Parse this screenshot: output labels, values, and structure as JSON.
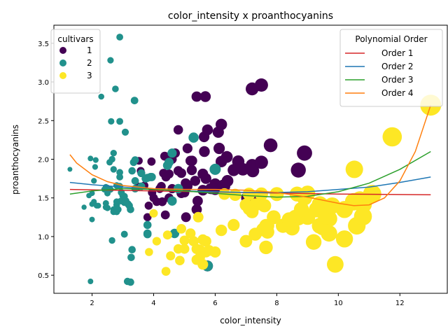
{
  "chart_data": {
    "type": "scatter",
    "title": "color_intensity x proanthocyanins",
    "xlabel": "color_intensity",
    "ylabel": "proanthocyanins",
    "xlim": [
      0.76,
      13.54
    ],
    "ylim": [
      0.266,
      3.734
    ],
    "xticks": [
      2,
      4,
      6,
      8,
      10,
      12
    ],
    "yticks": [
      0.5,
      1.0,
      1.5,
      2.0,
      2.5,
      3.0,
      3.5
    ],
    "ytick_labels": [
      "0.5",
      "1.0",
      "1.5",
      "2.0",
      "2.5",
      "3.0",
      "3.5"
    ],
    "grid": false,
    "legend_cultivars": {
      "title": "cultivars",
      "placement": "top-left",
      "entries": [
        {
          "label": "1",
          "color": "#440154"
        },
        {
          "label": "2",
          "color": "#21918c"
        },
        {
          "label": "3",
          "color": "#fde725"
        }
      ]
    },
    "legend_fits": {
      "title": "Polynomial Order",
      "placement": "top-right",
      "entries": [
        {
          "label": "Order 1",
          "color": "#d62728"
        },
        {
          "label": "Order 2",
          "color": "#1f77b4"
        },
        {
          "label": "Order 3",
          "color": "#2ca02c"
        },
        {
          "label": "Order 4",
          "color": "#ff7f0e"
        }
      ]
    },
    "fits": [
      {
        "name": "Order 1",
        "color": "#d62728",
        "x": [
          1.28,
          4,
          7,
          10,
          13.0
        ],
        "y": [
          1.61,
          1.59,
          1.57,
          1.55,
          1.54
        ]
      },
      {
        "name": "Order 2",
        "color": "#1f77b4",
        "x": [
          1.28,
          2,
          3,
          4,
          5,
          6,
          7,
          8,
          9,
          10,
          11,
          12,
          13.0
        ],
        "y": [
          1.7,
          1.67,
          1.64,
          1.61,
          1.59,
          1.58,
          1.57,
          1.57,
          1.58,
          1.61,
          1.64,
          1.7,
          1.77
        ]
      },
      {
        "name": "Order 3",
        "color": "#2ca02c",
        "x": [
          1.28,
          2,
          3,
          4,
          5,
          6,
          7,
          8,
          9,
          10,
          11,
          12,
          13.0
        ],
        "y": [
          1.55,
          1.59,
          1.62,
          1.61,
          1.59,
          1.56,
          1.53,
          1.51,
          1.52,
          1.58,
          1.69,
          1.87,
          2.1
        ]
      },
      {
        "name": "Order 4",
        "color": "#ff7f0e",
        "x": [
          1.28,
          1.5,
          2,
          2.5,
          3,
          4,
          5,
          6,
          7,
          8,
          9,
          10,
          10.5,
          11,
          11.5,
          12,
          12.5,
          13.0
        ],
        "y": [
          2.06,
          1.95,
          1.8,
          1.71,
          1.66,
          1.62,
          1.61,
          1.61,
          1.6,
          1.57,
          1.51,
          1.43,
          1.4,
          1.41,
          1.5,
          1.72,
          2.1,
          2.7
        ]
      }
    ],
    "series": [
      {
        "name": "1",
        "color": "#440154",
        "points": [
          [
            5.64,
            2.29
          ],
          [
            4.38,
            1.28
          ],
          [
            5.68,
            2.81
          ],
          [
            7.8,
            2.18
          ],
          [
            4.32,
            1.82
          ],
          [
            6.75,
            1.97
          ],
          [
            5.25,
            1.98
          ],
          [
            5.05,
            1.25
          ],
          [
            5.2,
            1.98
          ],
          [
            7.22,
            1.85
          ],
          [
            5.75,
            2.38
          ],
          [
            5.0,
            1.57
          ],
          [
            5.6,
            1.81
          ],
          [
            7.5,
            2.96
          ],
          [
            7.3,
            1.46
          ],
          [
            6.2,
            1.97
          ],
          [
            6.4,
            1.72
          ],
          [
            6.6,
            1.86
          ],
          [
            8.7,
            1.86
          ],
          [
            5.1,
            1.66
          ],
          [
            5.65,
            2.1
          ],
          [
            4.5,
            1.5
          ],
          [
            3.8,
            1.25
          ],
          [
            3.93,
            1.97
          ],
          [
            3.52,
            1.98
          ],
          [
            3.58,
            1.85
          ],
          [
            4.8,
            2.38
          ],
          [
            3.95,
            1.57
          ],
          [
            4.5,
            1.81
          ],
          [
            4.7,
            2.08
          ],
          [
            5.7,
            1.75
          ],
          [
            6.9,
            1.87
          ],
          [
            3.84,
            1.4
          ],
          [
            5.4,
            1.35
          ],
          [
            4.2,
            1.62
          ],
          [
            5.1,
            2.14
          ],
          [
            4.6,
            1.62
          ],
          [
            4.25,
            1.65
          ],
          [
            3.7,
            1.66
          ],
          [
            5.1,
            1.65
          ],
          [
            6.13,
            2.14
          ],
          [
            7.2,
            2.91
          ],
          [
            4.28,
            1.45
          ],
          [
            5.43,
            1.46
          ],
          [
            4.36,
            2.04
          ],
          [
            5.04,
            1.69
          ],
          [
            5.24,
            1.86
          ],
          [
            4.9,
            1.56
          ],
          [
            6.1,
            2.35
          ],
          [
            6.2,
            2.45
          ],
          [
            8.9,
            2.08
          ],
          [
            7.2,
            1.92
          ],
          [
            5.6,
            1.6
          ],
          [
            7.05,
            1.5
          ],
          [
            6.3,
            1.65
          ],
          [
            5.85,
            1.62
          ],
          [
            6.25,
            1.66
          ],
          [
            6.38,
            2.03
          ],
          [
            5.75,
            0.62
          ],
          [
            7.5,
            1.96
          ],
          [
            6.0,
            1.68
          ],
          [
            4.4,
            1.77
          ],
          [
            4.8,
            1.85
          ],
          [
            5.4,
            2.81
          ],
          [
            5.35,
            1.72
          ],
          [
            4.0,
            1.5
          ],
          [
            4.9,
            1.82
          ],
          [
            3.6,
            1.82
          ],
          [
            6.0,
            1.61
          ],
          [
            4.1,
            1.45
          ],
          [
            3.5,
            1.65
          ],
          [
            4.6,
            2.0
          ],
          [
            5.9,
            1.62
          ]
        ]
      },
      {
        "name": "2",
        "color": "#21918c",
        "points": [
          [
            1.95,
            0.42
          ],
          [
            3.27,
            0.73
          ],
          [
            5.75,
            0.62
          ],
          [
            3.8,
            1.03
          ],
          [
            4.45,
            1.92
          ],
          [
            2.95,
            1.57
          ],
          [
            4.6,
            1.46
          ],
          [
            5.3,
            2.28
          ],
          [
            4.68,
            1.04
          ],
          [
            3.17,
            1.42
          ],
          [
            2.85,
            1.35
          ],
          [
            3.05,
            1.03
          ],
          [
            3.38,
            2.76
          ],
          [
            3.74,
            1.75
          ],
          [
            3.35,
            1.96
          ],
          [
            3.21,
            1.4
          ],
          [
            3.8,
            1.15
          ],
          [
            4.6,
            1.46
          ],
          [
            2.65,
            2.0
          ],
          [
            3.4,
            1.99
          ],
          [
            2.57,
            1.96
          ],
          [
            2.5,
            1.37
          ],
          [
            3.9,
            1.77
          ],
          [
            2.2,
            1.4
          ],
          [
            4.8,
            1.62
          ],
          [
            3.05,
            1.52
          ],
          [
            2.62,
            2.49
          ],
          [
            2.45,
            1.64
          ],
          [
            2.6,
            3.28
          ],
          [
            2.8,
            1.41
          ],
          [
            1.74,
            1.38
          ],
          [
            2.4,
            1.61
          ],
          [
            3.6,
            1.82
          ],
          [
            3.05,
            1.44
          ],
          [
            2.15,
            1.4
          ],
          [
            3.25,
            1.35
          ],
          [
            2.6,
            1.61
          ],
          [
            2.5,
            1.56
          ],
          [
            2.9,
            3.58
          ],
          [
            4.5,
            1.96
          ],
          [
            2.3,
            2.81
          ],
          [
            3.3,
            1.85
          ],
          [
            2.45,
            1.43
          ],
          [
            2.8,
            1.45
          ],
          [
            2.06,
            1.72
          ],
          [
            2.94,
            1.46
          ],
          [
            2.7,
            1.35
          ],
          [
            3.4,
            1.62
          ],
          [
            3.3,
            0.83
          ],
          [
            2.7,
            1.32
          ],
          [
            2.65,
            0.95
          ],
          [
            2.9,
            1.77
          ],
          [
            2.0,
            1.22
          ],
          [
            3.8,
            1.76
          ],
          [
            3.08,
            2.35
          ],
          [
            2.9,
            1.65
          ],
          [
            1.9,
            1.53
          ],
          [
            1.95,
            2.01
          ],
          [
            2.06,
            1.45
          ],
          [
            3.4,
            1.72
          ],
          [
            1.28,
            1.87
          ],
          [
            3.25,
            0.41
          ],
          [
            2.12,
            1.99
          ],
          [
            2.8,
            1.66
          ],
          [
            3.94,
            1.77
          ],
          [
            2.45,
            1.38
          ],
          [
            2.76,
            2.91
          ],
          [
            2.9,
            1.83
          ],
          [
            2.7,
            1.87
          ],
          [
            2.0,
            1.56
          ],
          [
            3.8,
            1.04
          ],
          [
            3.0,
            1.53
          ],
          [
            2.7,
            2.08
          ],
          [
            3.1,
            1.46
          ],
          [
            2.1,
            1.9
          ],
          [
            6.0,
            1.87
          ],
          [
            2.8,
            1.32
          ],
          [
            2.0,
            1.42
          ],
          [
            3.15,
            0.42
          ],
          [
            2.82,
            1.36
          ],
          [
            2.5,
            1.63
          ],
          [
            3.6,
            1.65
          ],
          [
            4.6,
            2.08
          ],
          [
            2.9,
            2.49
          ]
        ]
      },
      {
        "name": "3",
        "color": "#fde725",
        "points": [
          [
            7.7,
            1.06
          ],
          [
            8.5,
            1.11
          ],
          [
            6.6,
            1.15
          ],
          [
            5.7,
            0.94
          ],
          [
            9.2,
            0.93
          ],
          [
            8.7,
            1.24
          ],
          [
            10.2,
            1.35
          ],
          [
            9.7,
            1.04
          ],
          [
            10.6,
            1.14
          ],
          [
            7.9,
            1.25
          ],
          [
            9.4,
            1.14
          ],
          [
            7.1,
            1.36
          ],
          [
            8.0,
            1.55
          ],
          [
            9.9,
            0.64
          ],
          [
            10.2,
            0.97
          ],
          [
            9.4,
            1.42
          ],
          [
            10.8,
            1.42
          ],
          [
            13.0,
            2.7
          ],
          [
            11.75,
            2.29
          ],
          [
            7.5,
            1.55
          ],
          [
            7.55,
            1.09
          ],
          [
            9.58,
            1.38
          ],
          [
            7.65,
            1.14
          ],
          [
            8.66,
            1.55
          ],
          [
            10.52,
            1.87
          ],
          [
            9.0,
            1.56
          ],
          [
            7.65,
            0.86
          ],
          [
            7.3,
            1.41
          ],
          [
            8.6,
            1.25
          ],
          [
            9.3,
            1.35
          ],
          [
            10.7,
            1.47
          ],
          [
            9.0,
            1.25
          ],
          [
            7.7,
            1.14
          ],
          [
            8.4,
            1.14
          ],
          [
            8.5,
            1.11
          ],
          [
            7.0,
            0.94
          ],
          [
            5.7,
            0.8
          ],
          [
            6.0,
            0.8
          ],
          [
            5.8,
            0.82
          ],
          [
            5.6,
            0.64
          ],
          [
            5.5,
            0.83
          ],
          [
            5.0,
            0.84
          ],
          [
            4.4,
            0.55
          ],
          [
            4.85,
            0.69
          ],
          [
            4.55,
            0.75
          ],
          [
            3.85,
            0.8
          ],
          [
            4.9,
            1.1
          ],
          [
            5.3,
            0.94
          ],
          [
            5.4,
            0.84
          ],
          [
            5.45,
            1.25
          ],
          [
            4.45,
            1.02
          ],
          [
            4.1,
            0.94
          ],
          [
            4.0,
            1.3
          ],
          [
            5.6,
            0.96
          ],
          [
            6.3,
            1.55
          ],
          [
            10.8,
            1.26
          ],
          [
            9.7,
            1.23
          ],
          [
            9.5,
            1.12
          ],
          [
            8.2,
            1.14
          ],
          [
            7.6,
            1.4
          ],
          [
            7.2,
            1.32
          ],
          [
            6.65,
            1.54
          ],
          [
            7.1,
            1.55
          ],
          [
            8.4,
            1.22
          ],
          [
            9.6,
            1.26
          ],
          [
            7.0,
            1.41
          ],
          [
            5.4,
            0.7
          ],
          [
            4.8,
            0.84
          ],
          [
            5.0,
            0.95
          ],
          [
            5.2,
            1.04
          ],
          [
            5.5,
            0.73
          ],
          [
            6.2,
            1.08
          ],
          [
            10.5,
            1.45
          ],
          [
            8.8,
            1.35
          ],
          [
            7.3,
            1.03
          ],
          [
            8.9,
            1.5
          ],
          [
            9.8,
            1.4
          ],
          [
            11.1,
            1.55
          ]
        ]
      }
    ]
  }
}
